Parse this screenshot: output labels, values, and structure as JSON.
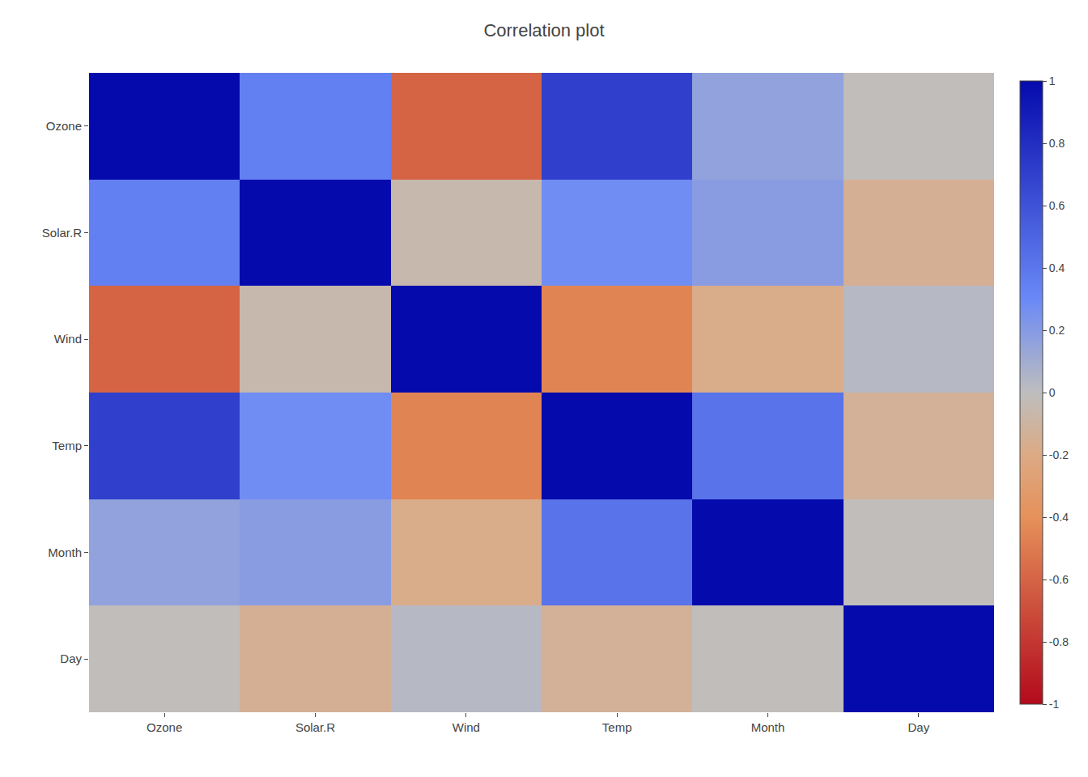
{
  "chart_data": {
    "type": "heatmap",
    "title": "Correlation plot",
    "categories": [
      "Ozone",
      "Solar.R",
      "Wind",
      "Temp",
      "Month",
      "Day"
    ],
    "cells": [
      [
        1.0,
        0.35,
        -0.6,
        0.7,
        0.16,
        -0.01
      ],
      [
        0.35,
        1.0,
        -0.06,
        0.28,
        0.19,
        -0.15
      ],
      [
        -0.6,
        -0.06,
        1.0,
        -0.46,
        -0.18,
        0.03
      ],
      [
        0.7,
        0.28,
        -0.46,
        1.0,
        0.42,
        -0.13
      ],
      [
        0.16,
        0.19,
        -0.18,
        0.42,
        1.0,
        -0.01
      ],
      [
        -0.01,
        -0.15,
        0.03,
        -0.13,
        -0.01,
        1.0
      ]
    ],
    "colorbar_range": [
      -1,
      1
    ],
    "colorbar_ticks": [
      -1,
      -0.8,
      -0.6,
      -0.4,
      -0.2,
      0,
      0.2,
      0.4,
      0.6,
      0.8,
      1
    ],
    "grid": false
  }
}
